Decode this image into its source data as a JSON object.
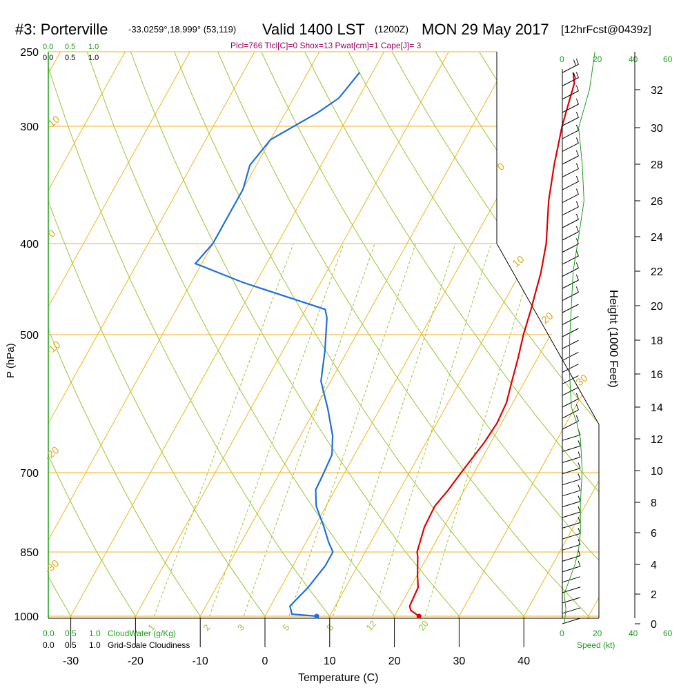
{
  "header": {
    "station": "#3: Porterville",
    "coords": "-33.0259°,18.999° (53,119)",
    "valid": "Valid 1400 LST",
    "zulu": "(1200Z)",
    "date": "MON 29 May 2017",
    "forecast": "[12hrFcst@0439z]",
    "indices": "Plcl=766 Tlcl[C]=0 Shox=13 Pwat[cm]=1 Cape[J]= 3"
  },
  "colors": {
    "temperature": "#e00000",
    "dewpoint": "#1e6fdc",
    "isotherm": "#f2b21a",
    "dry_adiabat": "#99c532",
    "cloudwater": "#1a9e1a",
    "indices": "#a0005a"
  },
  "labels": {
    "cloudwater_scale": "0.0 0.5 1.0 CloudWater (g/Kg)",
    "cloudiness_scale": "0.0 0.5 1.0 Grid-Scale Cloudiness",
    "cw_top": [
      "0.0",
      "0.5",
      "1.0"
    ],
    "cl_top": [
      "0.0",
      "0.5",
      "1.0"
    ],
    "cw_bottom": [
      "0.0",
      "0.5",
      "1.0"
    ],
    "cl_bottom": [
      "0.0",
      "0.5",
      "1.0"
    ],
    "cw_bottom_title": "CloudWater (g/Kg)",
    "cl_bottom_title": "Grid-Scale Cloudiness",
    "speed_label": "Speed (kt)",
    "speed_ticks": [
      "0",
      "20",
      "40",
      "60"
    ],
    "y_label": "P (hPa)",
    "x_label": "Temperature (C)",
    "height_label": "Height (1000 Feet)"
  },
  "chart_data": {
    "type": "skew-t",
    "xlabel": "Temperature (C)",
    "ylabel": "P (hPa)",
    "y2label": "Height (1000 Feet)",
    "x_ticks": [
      -30,
      -20,
      -10,
      0,
      10,
      20,
      30,
      40
    ],
    "y_ticks": [
      250,
      300,
      400,
      500,
      700,
      850,
      1000
    ],
    "y2_ticks": [
      0,
      2,
      4,
      6,
      8,
      10,
      12,
      14,
      16,
      18,
      20,
      22,
      24,
      26,
      28,
      30,
      32
    ],
    "isotherm_labels": [
      "10",
      "0",
      "-10",
      "-20",
      "-30",
      "0",
      "10",
      "20",
      "30"
    ],
    "mixing_ratio_labels": [
      "1",
      "2",
      "3",
      "5",
      "8",
      "12",
      "20"
    ],
    "series": [
      {
        "name": "Temperature",
        "points": [
          [
            1000,
            23.8
          ],
          [
            985,
            22.0
          ],
          [
            975,
            21.5
          ],
          [
            930,
            21.2
          ],
          [
            900,
            20.0
          ],
          [
            860,
            18.5
          ],
          [
            850,
            18.0
          ],
          [
            800,
            17.0
          ],
          [
            760,
            16.8
          ],
          [
            730,
            17.5
          ],
          [
            700,
            18.0
          ],
          [
            650,
            19.0
          ],
          [
            620,
            19.3
          ],
          [
            590,
            19.0
          ],
          [
            560,
            18.0
          ],
          [
            530,
            17.0
          ],
          [
            500,
            15.8
          ],
          [
            470,
            14.8
          ],
          [
            450,
            14.0
          ],
          [
            430,
            13.2
          ],
          [
            400,
            11.5
          ],
          [
            360,
            8.2
          ],
          [
            330,
            6.0
          ],
          [
            300,
            3.9
          ],
          [
            270,
            2.1
          ],
          [
            263,
            1.0
          ]
        ]
      },
      {
        "name": "Dewpoint",
        "points": [
          [
            1000,
            8.0
          ],
          [
            995,
            4.0
          ],
          [
            975,
            3.0
          ],
          [
            955,
            3.5
          ],
          [
            930,
            4.2
          ],
          [
            880,
            5.0
          ],
          [
            850,
            5.0
          ],
          [
            830,
            3.5
          ],
          [
            800,
            1.5
          ],
          [
            760,
            -1.5
          ],
          [
            730,
            -3.0
          ],
          [
            700,
            -3.2
          ],
          [
            670,
            -3.5
          ],
          [
            640,
            -5.0
          ],
          [
            600,
            -8.0
          ],
          [
            560,
            -11.5
          ],
          [
            520,
            -13.5
          ],
          [
            480,
            -16.0
          ],
          [
            470,
            -17.0
          ],
          [
            440,
            -32.0
          ],
          [
            420,
            -41.0
          ],
          [
            400,
            -40.0
          ],
          [
            380,
            -40.0
          ],
          [
            350,
            -40.0
          ],
          [
            330,
            -41.0
          ],
          [
            310,
            -40.0
          ],
          [
            290,
            -35.0
          ],
          [
            280,
            -33.0
          ],
          [
            263,
            -32.0
          ]
        ]
      }
    ],
    "surface_points": {
      "temperature": [
        1000,
        23.8
      ],
      "dewpoint": [
        1000,
        8.0
      ]
    },
    "wind_speed_profile_kt": [
      [
        0,
        1
      ],
      [
        1,
        2
      ],
      [
        2,
        1
      ],
      [
        3,
        4
      ],
      [
        4,
        7
      ],
      [
        5,
        9
      ],
      [
        6,
        10
      ],
      [
        8,
        10
      ],
      [
        10,
        11
      ],
      [
        12,
        10
      ],
      [
        13,
        8
      ],
      [
        14,
        5
      ],
      [
        16,
        4
      ],
      [
        18,
        4
      ],
      [
        20,
        5
      ],
      [
        22,
        6
      ],
      [
        24,
        9
      ],
      [
        26,
        12
      ],
      [
        28,
        11
      ],
      [
        30,
        9
      ],
      [
        32,
        15
      ],
      [
        34,
        18
      ]
    ],
    "cloudwater": [],
    "cloudiness": []
  }
}
